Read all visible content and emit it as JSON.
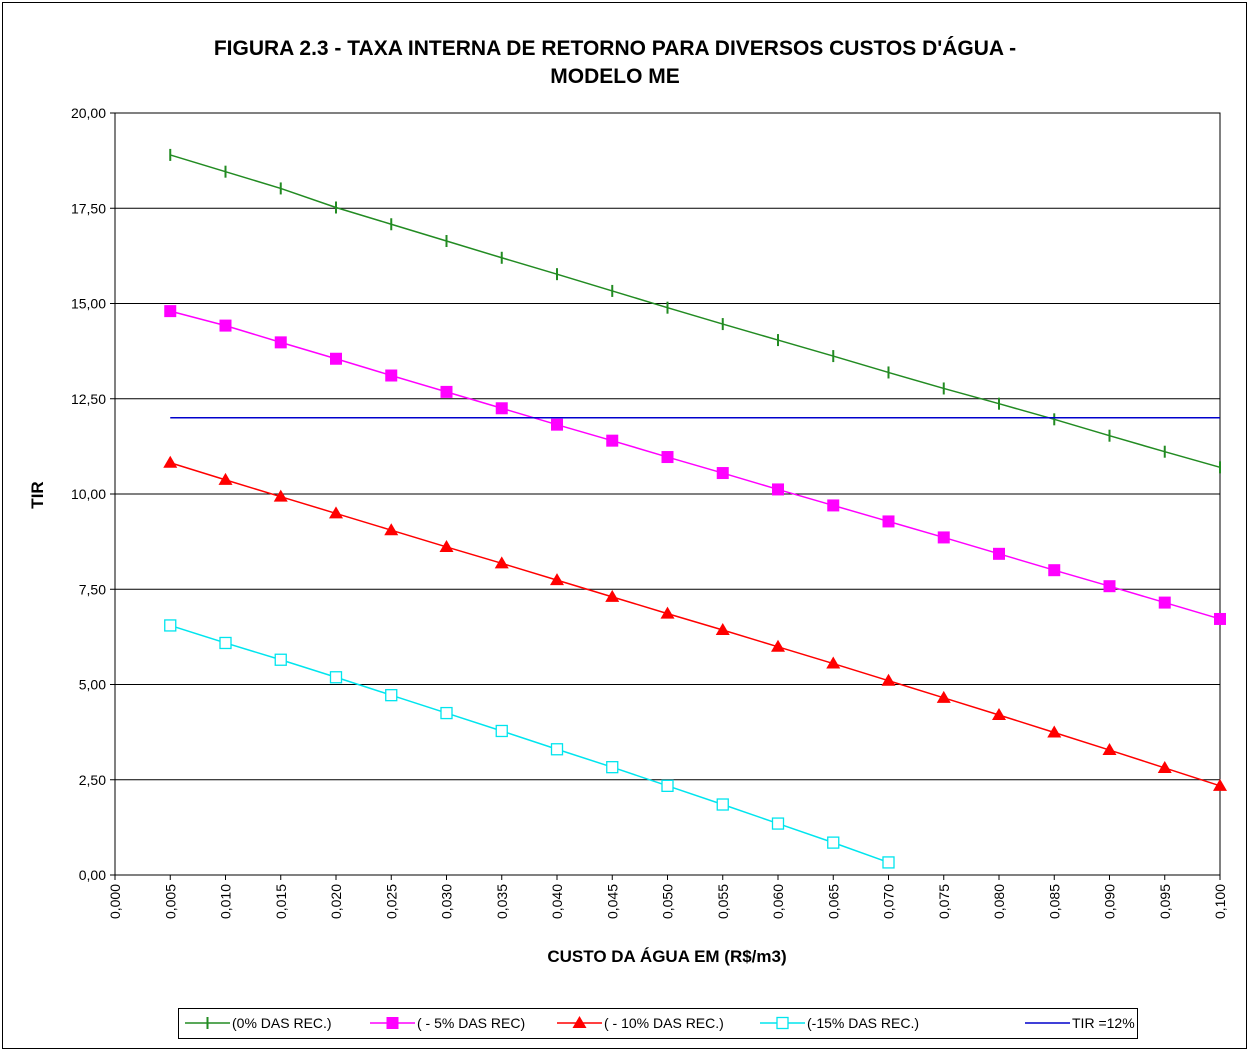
{
  "chart_data": {
    "type": "line",
    "title": [
      "FIGURA 2.3 - TAXA INTERNA DE RETORNO PARA DIVERSOS CUSTOS D'ÁGUA -",
      "MODELO ME"
    ],
    "x_label": "CUSTO DA ÁGUA EM (R$/m3)",
    "y_label": "TIR",
    "x": [
      0.005,
      0.01,
      0.015,
      0.02,
      0.025,
      0.03,
      0.035,
      0.04,
      0.045,
      0.05,
      0.055,
      0.06,
      0.065,
      0.07,
      0.075,
      0.08,
      0.085,
      0.09,
      0.095,
      0.1
    ],
    "series": [
      {
        "name": "(0% DAS REC.)",
        "color": "#228b22",
        "marker": "tick",
        "values": [
          18.9,
          18.46,
          18.02,
          17.52,
          17.08,
          16.64,
          16.2,
          15.77,
          15.33,
          14.89,
          14.46,
          14.04,
          13.62,
          13.19,
          12.77,
          12.37,
          11.96,
          11.53,
          11.11,
          10.7
        ]
      },
      {
        "name": "( - 5% DAS REC)",
        "color": "#ff00ff",
        "marker": "square",
        "values": [
          14.8,
          14.42,
          13.98,
          13.55,
          13.11,
          12.68,
          12.25,
          11.82,
          11.4,
          10.97,
          10.55,
          10.12,
          9.7,
          9.28,
          8.86,
          8.43,
          8.0,
          7.58,
          7.15,
          6.72
        ]
      },
      {
        "name": "( - 10% DAS REC.)",
        "color": "#ff0000",
        "marker": "triangle",
        "values": [
          10.82,
          10.37,
          9.93,
          9.49,
          9.05,
          8.61,
          8.18,
          7.74,
          7.3,
          6.86,
          6.43,
          5.99,
          5.55,
          5.1,
          4.65,
          4.2,
          3.74,
          3.28,
          2.81,
          2.34
        ]
      },
      {
        "name": "(-15% DAS REC.)",
        "color": "#00e5ee",
        "marker": "hollow-square",
        "values": [
          6.55,
          6.09,
          5.65,
          5.19,
          4.72,
          4.25,
          3.78,
          3.3,
          2.83,
          2.34,
          1.85,
          1.35,
          0.85,
          0.33,
          null,
          null,
          null,
          null,
          null,
          null
        ]
      },
      {
        "name": "TIR =12%",
        "color": "#0000cc",
        "marker": "none",
        "values": [
          12,
          12,
          12,
          12,
          12,
          12,
          12,
          12,
          12,
          12,
          12,
          12,
          12,
          12,
          12,
          12,
          12,
          12,
          12,
          12
        ]
      }
    ],
    "xlim": [
      0,
      0.1
    ],
    "ylim": [
      0,
      20
    ],
    "xticks": [
      {
        "value": 0,
        "label": "0,000"
      },
      {
        "value": 0.005,
        "label": "0,005"
      },
      {
        "value": 0.01,
        "label": "0,010"
      },
      {
        "value": 0.015,
        "label": "0,015"
      },
      {
        "value": 0.02,
        "label": "0,020"
      },
      {
        "value": 0.025,
        "label": "0,025"
      },
      {
        "value": 0.03,
        "label": "0,030"
      },
      {
        "value": 0.035,
        "label": "0,035"
      },
      {
        "value": 0.04,
        "label": "0,040"
      },
      {
        "value": 0.045,
        "label": "0,045"
      },
      {
        "value": 0.05,
        "label": "0,050"
      },
      {
        "value": 0.055,
        "label": "0,055"
      },
      {
        "value": 0.06,
        "label": "0,060"
      },
      {
        "value": 0.065,
        "label": "0,065"
      },
      {
        "value": 0.07,
        "label": "0,070"
      },
      {
        "value": 0.075,
        "label": "0,075"
      },
      {
        "value": 0.08,
        "label": "0,080"
      },
      {
        "value": 0.085,
        "label": "0,085"
      },
      {
        "value": 0.09,
        "label": "0,090"
      },
      {
        "value": 0.095,
        "label": "0,095"
      },
      {
        "value": 0.1,
        "label": "0,100"
      }
    ],
    "yticks": [
      {
        "value": 0,
        "label": "0,00"
      },
      {
        "value": 2.5,
        "label": "2,50"
      },
      {
        "value": 5,
        "label": "5,00"
      },
      {
        "value": 7.5,
        "label": "7,50"
      },
      {
        "value": 10,
        "label": "10,00"
      },
      {
        "value": 12.5,
        "label": "12,50"
      },
      {
        "value": 15,
        "label": "15,00"
      },
      {
        "value": 17.5,
        "label": "17,50"
      },
      {
        "value": 20,
        "label": "20,00"
      }
    ],
    "grid": true,
    "legend": "bottom"
  }
}
